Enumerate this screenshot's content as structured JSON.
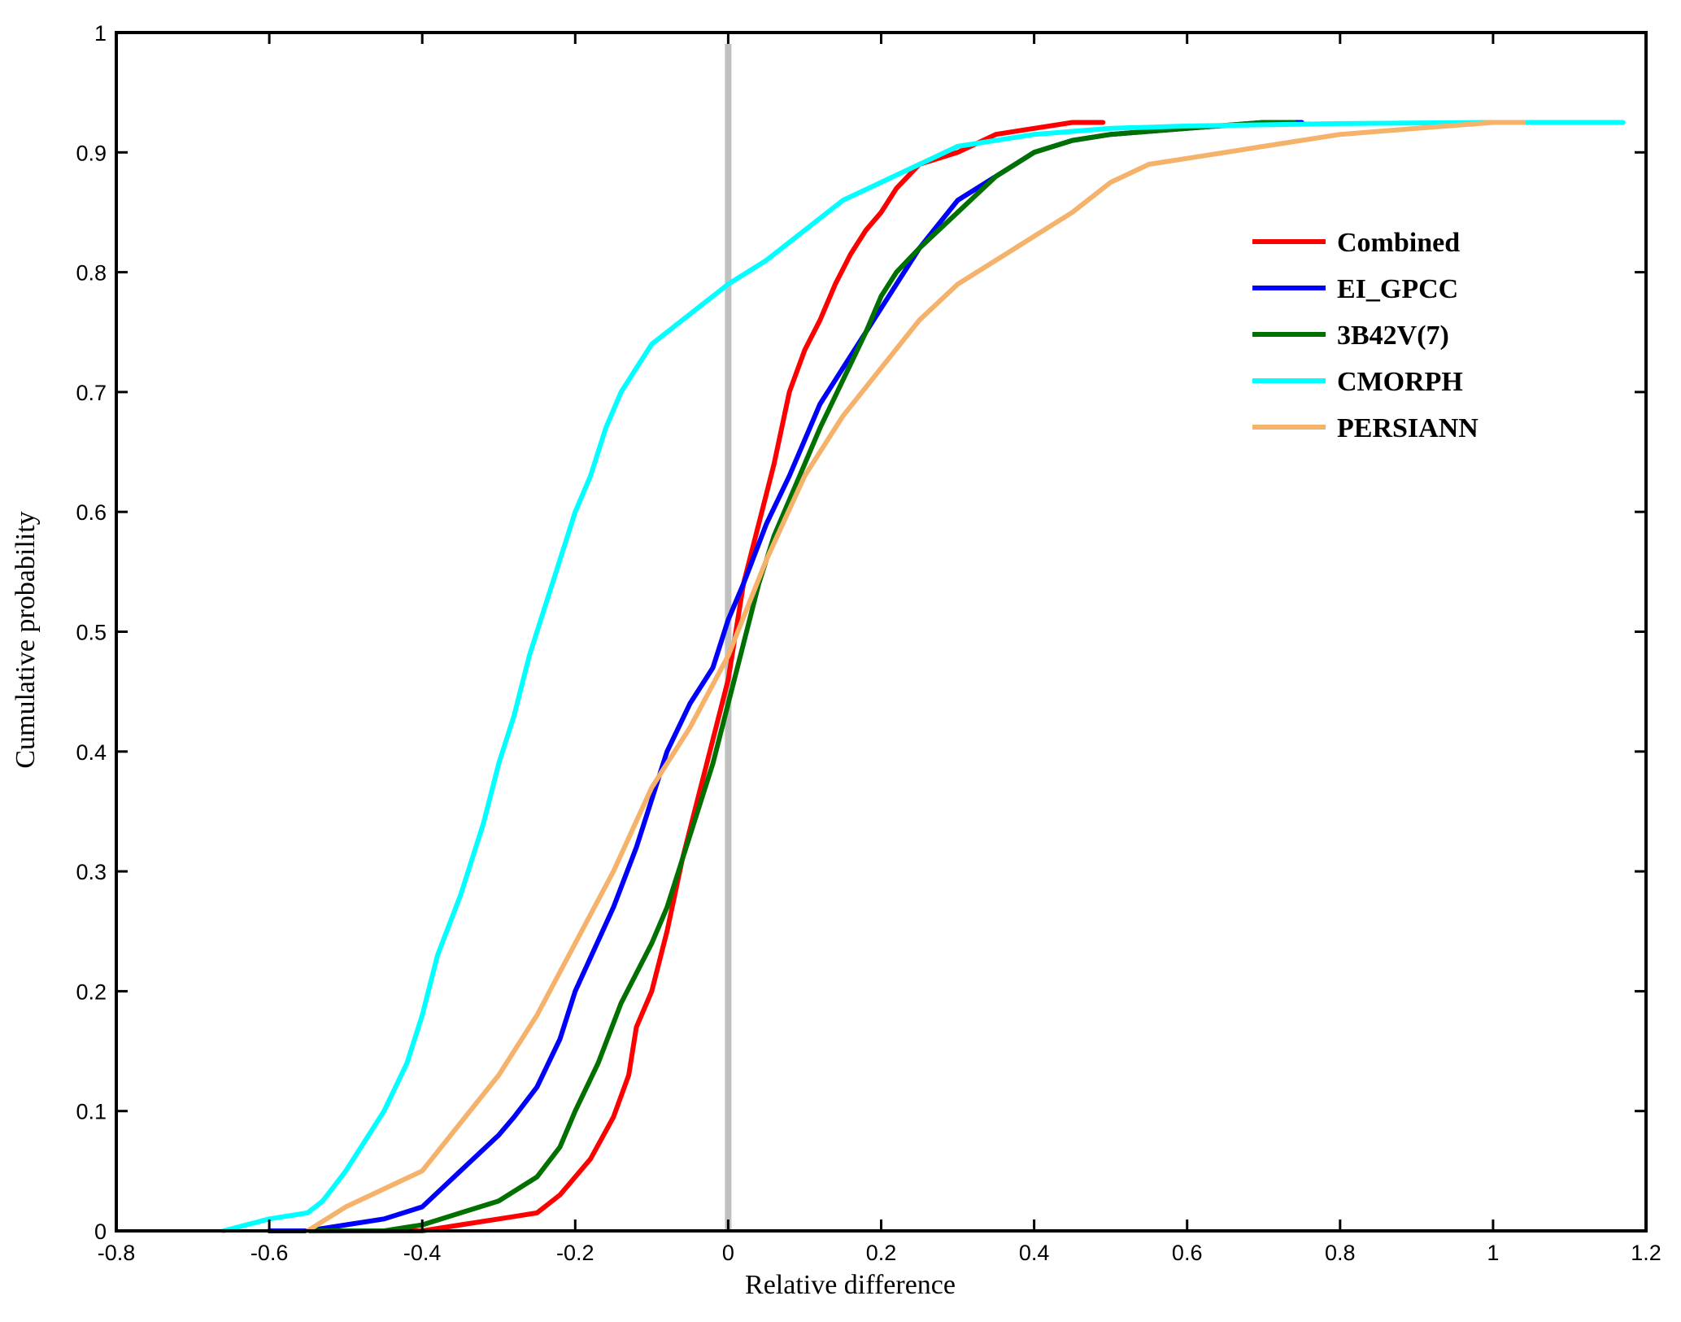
{
  "chart_data": {
    "type": "line",
    "title": "",
    "xlabel": "Relative difference",
    "ylabel": "Cumulative probability",
    "xlim": [
      -0.8,
      1.2
    ],
    "ylim": [
      0,
      1
    ],
    "xticks": [
      -0.8,
      -0.6,
      -0.4,
      -0.2,
      0,
      0.2,
      0.4,
      0.6,
      0.8,
      1,
      1.2
    ],
    "yticks": [
      0,
      0.1,
      0.2,
      0.3,
      0.4,
      0.5,
      0.6,
      0.7,
      0.8,
      0.9,
      1
    ],
    "xtick_labels": [
      "-0.8",
      "-0.6",
      "-0.4",
      "-0.2",
      "0",
      "0.2",
      "0.4",
      "0.6",
      "0.8",
      "1",
      "1.2"
    ],
    "ytick_labels": [
      "0",
      "0.1",
      "0.2",
      "0.3",
      "0.4",
      "0.5",
      "0.6",
      "0.7",
      "0.8",
      "0.9",
      "1"
    ],
    "grid": false,
    "legend_position": "right",
    "reference_line": {
      "x": 0,
      "color": "#c0c0c0"
    },
    "series": [
      {
        "name": "Combined",
        "color": "#ff0000",
        "x": [
          -0.55,
          -0.5,
          -0.45,
          -0.4,
          -0.35,
          -0.3,
          -0.25,
          -0.22,
          -0.2,
          -0.18,
          -0.15,
          -0.13,
          -0.12,
          -0.1,
          -0.08,
          -0.06,
          -0.04,
          -0.02,
          0,
          0.02,
          0.04,
          0.06,
          0.08,
          0.1,
          0.12,
          0.14,
          0.16,
          0.18,
          0.2,
          0.22,
          0.25,
          0.3,
          0.35,
          0.4,
          0.45,
          0.49
        ],
        "y": [
          0,
          0,
          0,
          0,
          0.005,
          0.01,
          0.015,
          0.03,
          0.045,
          0.06,
          0.095,
          0.13,
          0.17,
          0.2,
          0.25,
          0.31,
          0.36,
          0.41,
          0.46,
          0.54,
          0.59,
          0.64,
          0.7,
          0.735,
          0.76,
          0.79,
          0.815,
          0.835,
          0.85,
          0.87,
          0.89,
          0.9,
          0.915,
          0.92,
          0.925,
          0.925
        ]
      },
      {
        "name": "EI_GPCC",
        "color": "#0000ff",
        "x": [
          -0.6,
          -0.55,
          -0.5,
          -0.45,
          -0.4,
          -0.35,
          -0.3,
          -0.28,
          -0.25,
          -0.22,
          -0.2,
          -0.15,
          -0.12,
          -0.1,
          -0.08,
          -0.05,
          -0.02,
          0,
          0.02,
          0.05,
          0.08,
          0.1,
          0.12,
          0.15,
          0.18,
          0.2,
          0.22,
          0.25,
          0.3,
          0.35,
          0.4,
          0.45,
          0.5,
          0.6,
          0.7,
          0.75
        ],
        "y": [
          0,
          0,
          0.005,
          0.01,
          0.02,
          0.05,
          0.08,
          0.095,
          0.12,
          0.16,
          0.2,
          0.27,
          0.32,
          0.36,
          0.4,
          0.44,
          0.47,
          0.51,
          0.54,
          0.59,
          0.63,
          0.66,
          0.69,
          0.72,
          0.75,
          0.77,
          0.79,
          0.82,
          0.86,
          0.88,
          0.9,
          0.91,
          0.915,
          0.92,
          0.925,
          0.925
        ]
      },
      {
        "name": "3B42V(7)",
        "color": "#007000",
        "x": [
          -0.55,
          -0.5,
          -0.45,
          -0.4,
          -0.35,
          -0.3,
          -0.25,
          -0.22,
          -0.2,
          -0.17,
          -0.14,
          -0.1,
          -0.08,
          -0.06,
          -0.04,
          -0.02,
          0,
          0.02,
          0.04,
          0.06,
          0.08,
          0.1,
          0.12,
          0.15,
          0.18,
          0.2,
          0.22,
          0.25,
          0.3,
          0.35,
          0.4,
          0.45,
          0.5,
          0.6,
          0.7,
          0.74
        ],
        "y": [
          0,
          0,
          0,
          0.005,
          0.015,
          0.025,
          0.045,
          0.07,
          0.1,
          0.14,
          0.19,
          0.24,
          0.27,
          0.31,
          0.35,
          0.39,
          0.44,
          0.49,
          0.54,
          0.58,
          0.61,
          0.64,
          0.67,
          0.71,
          0.75,
          0.78,
          0.8,
          0.82,
          0.85,
          0.88,
          0.9,
          0.91,
          0.915,
          0.92,
          0.925,
          0.925
        ]
      },
      {
        "name": "CMORPH",
        "color": "#00ffff",
        "x": [
          -0.66,
          -0.6,
          -0.55,
          -0.53,
          -0.5,
          -0.47,
          -0.45,
          -0.42,
          -0.4,
          -0.38,
          -0.35,
          -0.32,
          -0.3,
          -0.28,
          -0.26,
          -0.24,
          -0.22,
          -0.2,
          -0.18,
          -0.16,
          -0.14,
          -0.12,
          -0.1,
          -0.08,
          -0.06,
          -0.04,
          -0.02,
          0,
          0.05,
          0.1,
          0.15,
          0.2,
          0.25,
          0.3,
          0.4,
          0.5,
          0.6,
          0.8,
          1.0,
          1.17
        ],
        "y": [
          0,
          0.01,
          0.015,
          0.025,
          0.05,
          0.08,
          0.1,
          0.14,
          0.18,
          0.23,
          0.28,
          0.34,
          0.39,
          0.43,
          0.48,
          0.52,
          0.56,
          0.6,
          0.63,
          0.67,
          0.7,
          0.72,
          0.74,
          0.75,
          0.76,
          0.77,
          0.78,
          0.79,
          0.81,
          0.835,
          0.86,
          0.875,
          0.89,
          0.905,
          0.915,
          0.92,
          0.922,
          0.924,
          0.925,
          0.925
        ]
      },
      {
        "name": "PERSIANN",
        "color": "#f5b26b",
        "x": [
          -0.55,
          -0.5,
          -0.45,
          -0.4,
          -0.35,
          -0.3,
          -0.25,
          -0.2,
          -0.15,
          -0.1,
          -0.05,
          0,
          0.05,
          0.1,
          0.15,
          0.2,
          0.25,
          0.3,
          0.35,
          0.4,
          0.45,
          0.5,
          0.55,
          0.6,
          0.7,
          0.8,
          0.9,
          1.0,
          1.04
        ],
        "y": [
          0,
          0.02,
          0.035,
          0.05,
          0.09,
          0.13,
          0.18,
          0.24,
          0.3,
          0.37,
          0.42,
          0.48,
          0.56,
          0.63,
          0.68,
          0.72,
          0.76,
          0.79,
          0.81,
          0.83,
          0.85,
          0.875,
          0.89,
          0.895,
          0.905,
          0.915,
          0.92,
          0.925,
          0.925
        ]
      }
    ]
  }
}
